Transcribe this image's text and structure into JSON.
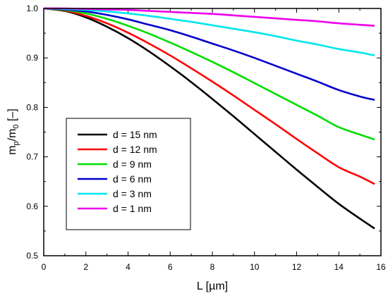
{
  "chart_data": {
    "type": "line",
    "xlabel": "L  [µm]",
    "ylabel": {
      "base1": "m",
      "sub1": "p",
      "mid": "/m",
      "sub2": "0",
      "tail": " [–]"
    },
    "xlim": [
      0,
      16
    ],
    "ylim": [
      0.5,
      1.0
    ],
    "xticks": [
      "0",
      "2",
      "4",
      "6",
      "8",
      "10",
      "12",
      "14",
      "16"
    ],
    "yticks": [
      "0.5",
      "0.6",
      "0.7",
      "0.8",
      "0.9",
      "1.0"
    ],
    "grid": false,
    "legend_position": "lower-left",
    "series": [
      {
        "name": "d = 15 nm",
        "color": "#000000",
        "x": [
          0,
          1,
          2,
          3,
          4,
          5,
          6,
          7,
          8,
          9,
          10,
          11,
          12,
          13,
          14,
          15,
          15.7
        ],
        "y": [
          1.0,
          0.995,
          0.982,
          0.963,
          0.94,
          0.913,
          0.883,
          0.851,
          0.817,
          0.782,
          0.746,
          0.71,
          0.674,
          0.639,
          0.605,
          0.575,
          0.555
        ]
      },
      {
        "name": "d = 12 nm",
        "color": "#ff0000",
        "x": [
          0,
          1,
          2,
          3,
          4,
          5,
          6,
          7,
          8,
          9,
          10,
          11,
          12,
          13,
          14,
          15,
          15.7
        ],
        "y": [
          1.0,
          0.996,
          0.985,
          0.97,
          0.951,
          0.929,
          0.905,
          0.879,
          0.852,
          0.824,
          0.795,
          0.766,
          0.736,
          0.707,
          0.679,
          0.66,
          0.645
        ]
      },
      {
        "name": "d = 9 nm",
        "color": "#00dd00",
        "x": [
          0,
          1,
          2,
          3,
          4,
          5,
          6,
          7,
          8,
          9,
          10,
          11,
          12,
          13,
          14,
          15,
          15.7
        ],
        "y": [
          1.0,
          0.997,
          0.99,
          0.979,
          0.965,
          0.949,
          0.931,
          0.912,
          0.892,
          0.871,
          0.849,
          0.827,
          0.805,
          0.783,
          0.76,
          0.745,
          0.735
        ]
      },
      {
        "name": "d = 6 nm",
        "color": "#0000cc",
        "x": [
          0,
          1,
          2,
          3,
          4,
          5,
          6,
          7,
          8,
          9,
          10,
          11,
          12,
          13,
          14,
          15,
          15.7
        ],
        "y": [
          1.0,
          0.998,
          0.994,
          0.987,
          0.978,
          0.967,
          0.956,
          0.943,
          0.929,
          0.915,
          0.9,
          0.884,
          0.868,
          0.852,
          0.835,
          0.822,
          0.815
        ]
      },
      {
        "name": "d = 3 nm",
        "color": "#00e5ee",
        "x": [
          0,
          1,
          2,
          3,
          4,
          5,
          6,
          7,
          8,
          9,
          10,
          11,
          12,
          13,
          14,
          15,
          15.7
        ],
        "y": [
          1.0,
          0.999,
          0.997,
          0.994,
          0.99,
          0.985,
          0.979,
          0.973,
          0.966,
          0.959,
          0.952,
          0.944,
          0.935,
          0.927,
          0.918,
          0.911,
          0.905
        ]
      },
      {
        "name": "d = 1 nm",
        "color": "#ee00ee",
        "x": [
          0,
          1,
          2,
          3,
          4,
          5,
          6,
          7,
          8,
          9,
          10,
          11,
          12,
          13,
          14,
          15,
          15.7
        ],
        "y": [
          1.0,
          1.0,
          0.999,
          0.998,
          0.997,
          0.995,
          0.993,
          0.991,
          0.989,
          0.986,
          0.983,
          0.98,
          0.977,
          0.974,
          0.97,
          0.967,
          0.965
        ]
      }
    ]
  }
}
